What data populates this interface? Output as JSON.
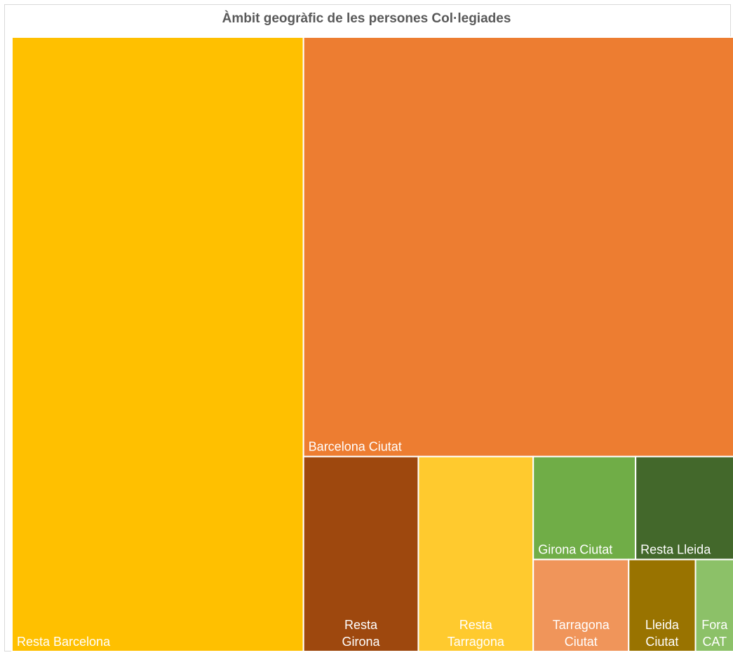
{
  "chart_data": {
    "type": "treemap",
    "title": "Àmbit geogràfic de les persones Col·legiades",
    "categories": [
      "Resta Barcelona",
      "Barcelona Ciutat",
      "Resta Girona",
      "Resta Tarragona",
      "Girona Ciutat",
      "Resta Lleida",
      "Tarragona Ciutat",
      "Lleida Ciutat",
      "Fora CAT"
    ],
    "values": [
      408,
      411,
      51,
      51,
      24,
      23,
      20,
      14,
      8
    ],
    "colors": [
      "#FFC000",
      "#ED7D31",
      "#9E480E",
      "#FFCA2E",
      "#70AD47",
      "#43682B",
      "#F0955A",
      "#997300",
      "#8CC168"
    ],
    "label_lines": [
      [
        "Resta Barcelona"
      ],
      [
        "Barcelona Ciutat"
      ],
      [
        "Resta",
        "Girona"
      ],
      [
        "Resta",
        "Tarragona"
      ],
      [
        "Girona Ciutat"
      ],
      [
        "Resta Lleida"
      ],
      [
        "Tarragona",
        "Ciutat"
      ],
      [
        "Lleida",
        "Ciutat"
      ],
      [
        "Fora",
        "CAT"
      ]
    ],
    "legend": "none"
  }
}
